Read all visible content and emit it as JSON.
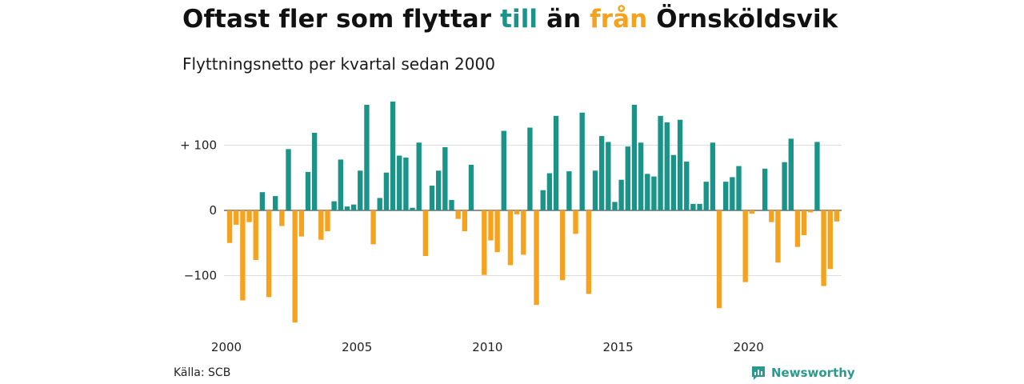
{
  "colors": {
    "positive": "#1a9488",
    "negative": "#f5a21e",
    "grid": "#dddddd",
    "brand": "#2a9a8e"
  },
  "header": {
    "title_parts": [
      {
        "text": "Oftast fler som flyttar ",
        "color": "#111111"
      },
      {
        "text": "till",
        "color": "#1a9488"
      },
      {
        "text": " än ",
        "color": "#111111"
      },
      {
        "text": "från",
        "color": "#f5a21e"
      },
      {
        "text": " Örnsköldsvik",
        "color": "#111111"
      }
    ],
    "subtitle": "Flyttningsnetto per kvartal sedan 2000"
  },
  "footer": {
    "source": "Källa: SCB",
    "brand": "Newsworthy",
    "brand_icon": "bar-chart-logo-icon"
  },
  "chart_data": {
    "type": "bar",
    "title": "Oftast fler som flyttar till än från Örnsköldsvik",
    "subtitle": "Flyttningsnetto per kvartal sedan 2000",
    "x_start": "2000 Q1",
    "ylim": [
      -180,
      170
    ],
    "y_ticks": [
      100,
      0,
      -100
    ],
    "y_tick_labels": [
      "+ 100",
      "0",
      "−100"
    ],
    "x_ticks": [
      {
        "year": 2000,
        "label": "2000"
      },
      {
        "year": 2005,
        "label": "2005"
      },
      {
        "year": 2010,
        "label": "2010"
      },
      {
        "year": 2015,
        "label": "2015"
      },
      {
        "year": 2020,
        "label": "2020"
      }
    ],
    "grid": true,
    "legend": "none",
    "values": [
      -50,
      -22,
      -138,
      -18,
      -76,
      28,
      -133,
      22,
      -24,
      94,
      -172,
      -40,
      59,
      119,
      -45,
      -32,
      14,
      78,
      6,
      9,
      61,
      162,
      -52,
      19,
      58,
      167,
      84,
      81,
      4,
      104,
      -70,
      38,
      61,
      97,
      16,
      -13,
      -32,
      70,
      0,
      -99,
      -46,
      -64,
      122,
      -84,
      -6,
      -68,
      127,
      -145,
      31,
      57,
      145,
      -107,
      60,
      -36,
      150,
      -128,
      61,
      114,
      105,
      13,
      47,
      98,
      162,
      104,
      56,
      52,
      145,
      135,
      85,
      139,
      75,
      10,
      10,
      44,
      104,
      -150,
      44,
      51,
      68,
      -110,
      -5,
      0,
      64,
      -18,
      -80,
      74,
      110,
      -56,
      -38,
      -3,
      105,
      -116,
      -90,
      -17
    ]
  }
}
